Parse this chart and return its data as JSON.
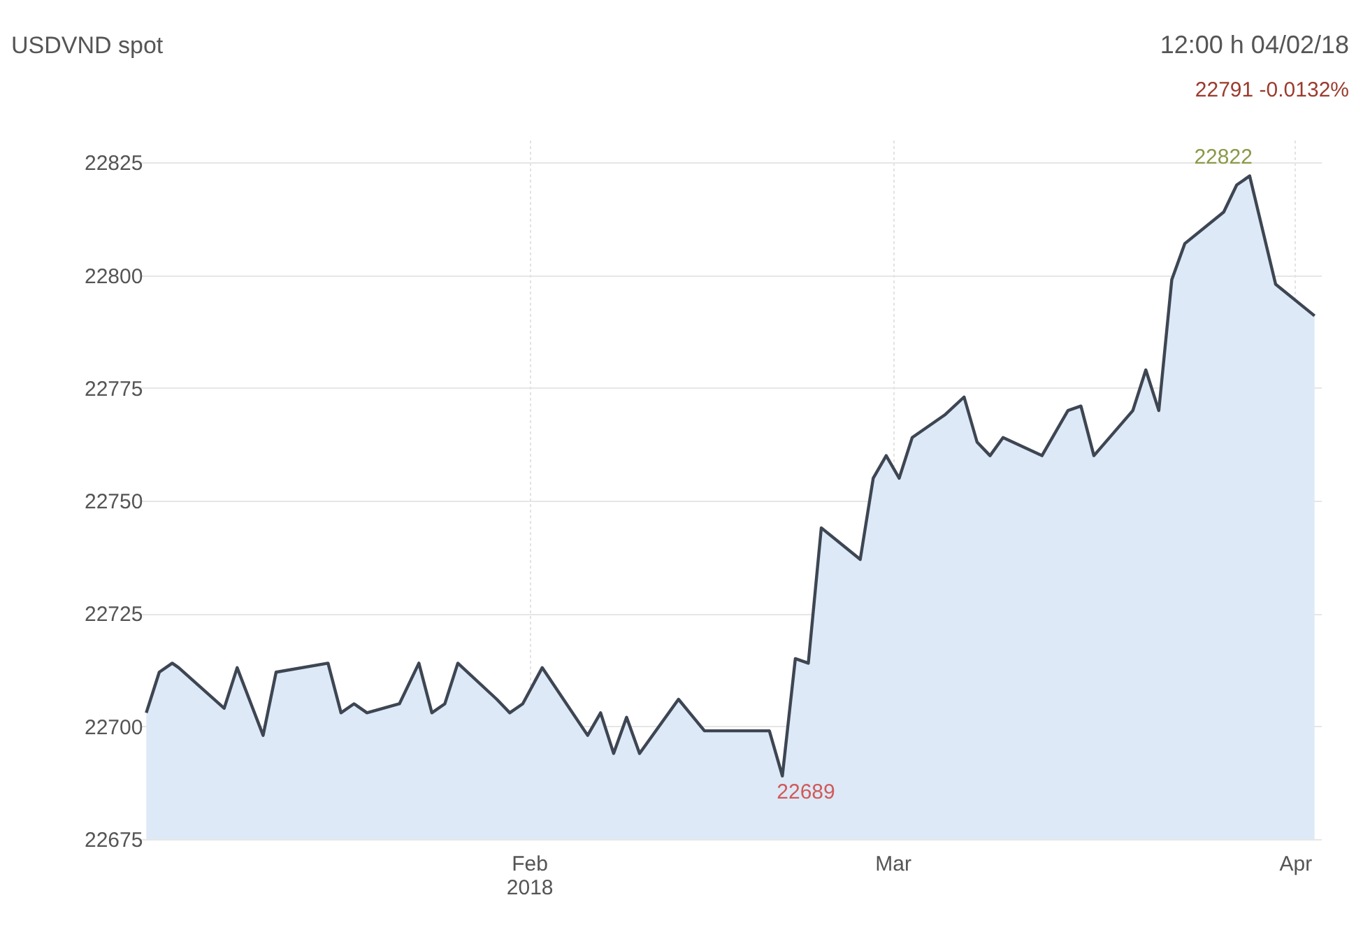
{
  "chart_data": {
    "type": "area",
    "title": "USDVND spot",
    "annotations": [
      "12:00 h 04/02/18",
      "22791 -0.0132%",
      {
        "text": "22822",
        "x": "2018-03-28T12:00",
        "y": 22822
      },
      {
        "text": "22689",
        "x": "2018-02-20T12:00",
        "y": 22689
      }
    ],
    "x": [
      "2018-01-02T12:00",
      "2018-01-03T12:00",
      "2018-01-04T12:00",
      "2018-01-05",
      "2018-01-08T12:00",
      "2018-01-09T12:00",
      "2018-01-11T12:00",
      "2018-01-12T12:00",
      "2018-01-16T12:00",
      "2018-01-17T12:00",
      "2018-01-18T12:00",
      "2018-01-19T12:00",
      "2018-01-22",
      "2018-01-23T12:00",
      "2018-01-24T12:00",
      "2018-01-25T12:00",
      "2018-01-26T12:00",
      "2018-01-29T12:00",
      "2018-01-30T12:00",
      "2018-01-31T12:00",
      "2018-02-02",
      "2018-02-05T12:00",
      "2018-02-06T12:00",
      "2018-02-07T12:00",
      "2018-02-08T12:00",
      "2018-02-09T12:00",
      "2018-02-12T12:00",
      "2018-02-14T12:00",
      "2018-02-19T12:00",
      "2018-02-20T12:00",
      "2018-02-21T12:00",
      "2018-02-22T12:00",
      "2018-02-23T12:00",
      "2018-02-26T12:00",
      "2018-02-27T12:00",
      "2018-02-28T12:00",
      "2018-03-01T12:00",
      "2018-03-02T12:00",
      "2018-03-05",
      "2018-03-06T12:00",
      "2018-03-07T12:00",
      "2018-03-08T12:00",
      "2018-03-09T12:00",
      "2018-03-12T12:00",
      "2018-03-14T12:00",
      "2018-03-15T12:00",
      "2018-03-16T12:00",
      "2018-03-19T12:00",
      "2018-03-20T12:00",
      "2018-03-21T12:00",
      "2018-03-22T12:00",
      "2018-03-23T12:00",
      "2018-03-26T12:00",
      "2018-03-27T12:00",
      "2018-03-28T12:00",
      "2018-03-30T12:00",
      "2018-04-02T12:00"
    ],
    "series": [
      {
        "color": "#3d4652",
        "values": [
          22703,
          22712,
          22714,
          22713,
          22704,
          22713,
          22698,
          22712,
          22714,
          22703,
          22705,
          22703,
          22705,
          22714,
          22703,
          22705,
          22714,
          22706,
          22703,
          22705,
          22713,
          22698,
          22703,
          22694,
          22702,
          22694,
          22706,
          22699,
          22699,
          22689,
          22715,
          22714,
          22744,
          22737,
          22755,
          22760,
          22755,
          22764,
          22769,
          22773,
          22763,
          22760,
          22764,
          22760,
          22770,
          22771,
          22760,
          22770,
          22779,
          22770,
          22799,
          22807,
          22814,
          22820,
          22822,
          22798,
          22791
        ]
      }
    ],
    "xlim": [
      "2018-01-02",
      "2018-04-03"
    ],
    "xticks": [
      {
        "value": "2018-02-01",
        "label": "Feb\n2018"
      },
      {
        "value": "2018-03-01",
        "label": "Mar"
      },
      {
        "value": "2018-04-01",
        "label": "Apr"
      }
    ],
    "ylim": [
      22675,
      22830
    ],
    "yticks": [
      22675,
      22700,
      22725,
      22750,
      22775,
      22800,
      22825
    ],
    "grid": true
  }
}
